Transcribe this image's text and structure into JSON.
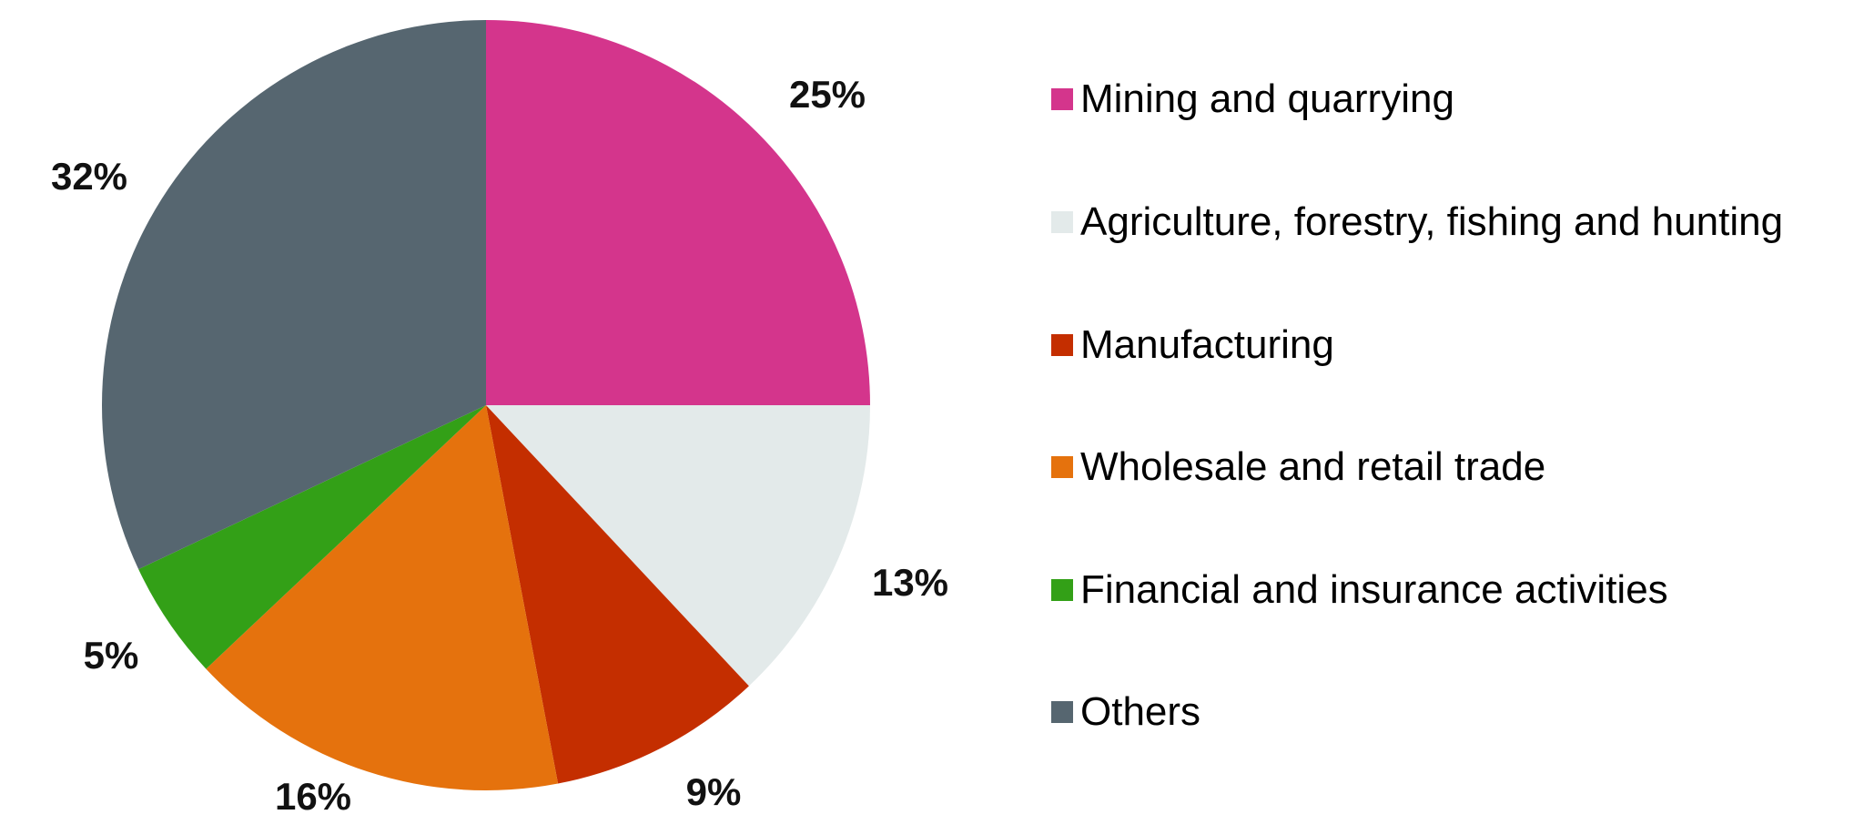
{
  "chart_data": {
    "type": "pie",
    "title": "",
    "categories": [
      "Mining and quarrying",
      "Agriculture, forestry, fishing and hunting",
      "Manufacturing",
      "Wholesale and retail trade",
      "Financial and insurance activities",
      "Others"
    ],
    "values": [
      25,
      13,
      9,
      16,
      5,
      32
    ],
    "labels": [
      "25%",
      "13%",
      "9%",
      "16%",
      "5%",
      "32%"
    ],
    "colors": [
      "#D4358C",
      "#E3EAEA",
      "#C42E00",
      "#E5720D",
      "#33A017",
      "#566670"
    ],
    "start_angle": "12 o'clock",
    "direction": "clockwise",
    "legend_position": "right"
  },
  "legend": {
    "items": [
      {
        "label": "Mining and quarrying",
        "color": "#D4358C"
      },
      {
        "label": "Agriculture, forestry, fishing and hunting",
        "color": "#E3EAEA"
      },
      {
        "label": "Manufacturing",
        "color": "#C42E00"
      },
      {
        "label": "Wholesale and retail trade",
        "color": "#E5720D"
      },
      {
        "label": "Financial and insurance activities",
        "color": "#33A017"
      },
      {
        "label": "Others",
        "color": "#566670"
      }
    ]
  }
}
